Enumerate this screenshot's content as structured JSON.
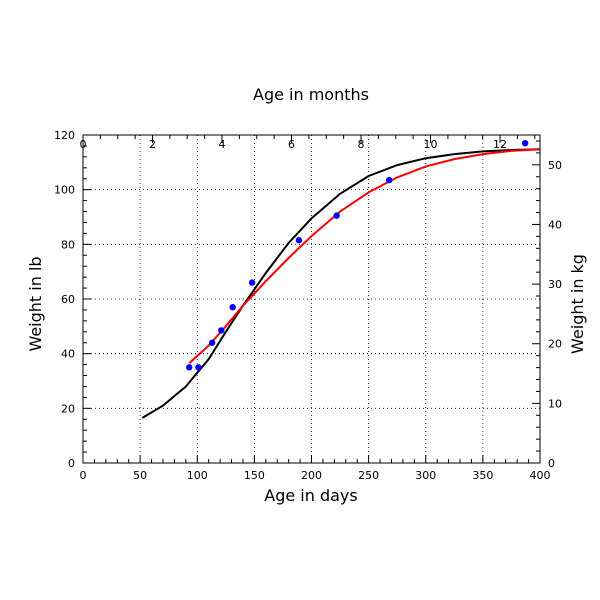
{
  "chart_data": {
    "type": "scatter",
    "title": "Age in months",
    "xlabel": "Age in days",
    "ylabel": "Weight in lb",
    "y2label": "Weight in kg",
    "xlim": [
      0,
      400
    ],
    "ylim": [
      0,
      120
    ],
    "y2lim": [
      0,
      55
    ],
    "x2lim": [
      0,
      13.15
    ],
    "xticks": [
      "0",
      "50",
      "100",
      "150",
      "200",
      "250",
      "300",
      "350",
      "400"
    ],
    "yticks": [
      "0",
      "20",
      "40",
      "60",
      "80",
      "100",
      "120"
    ],
    "y2ticks": [
      "0",
      "10",
      "20",
      "30",
      "40",
      "50"
    ],
    "x2ticks": [
      "0",
      "2",
      "4",
      "6",
      "8",
      "10",
      "12"
    ],
    "grid": true,
    "legend": "none",
    "colors": {
      "points": "#0000ff",
      "fit_red": "#ff0000",
      "fit_black": "#000000"
    },
    "points": {
      "x": [
        93,
        101,
        113,
        121,
        131,
        148,
        189,
        222,
        268,
        387
      ],
      "y": [
        35,
        35,
        44,
        48.5,
        57,
        66,
        81.5,
        90.5,
        103.5,
        117
      ]
    },
    "curve_red": {
      "x": [
        93,
        110,
        125,
        140,
        160,
        180,
        200,
        225,
        250,
        275,
        300,
        325,
        350,
        375,
        400
      ],
      "y": [
        36.5,
        43,
        50,
        57.5,
        66.5,
        75,
        83,
        92,
        99,
        104.5,
        108.5,
        111.2,
        113,
        114.2,
        114.8
      ]
    },
    "curve_black": {
      "x": [
        52,
        70,
        90,
        110,
        125,
        140,
        160,
        180,
        200,
        225,
        250,
        275,
        300,
        325,
        350,
        375,
        400
      ],
      "y": [
        16.5,
        21,
        28,
        38,
        48,
        57.5,
        69.5,
        80.5,
        89.5,
        98.5,
        105,
        109,
        111.5,
        113,
        114,
        114.5,
        114.8
      ]
    }
  }
}
